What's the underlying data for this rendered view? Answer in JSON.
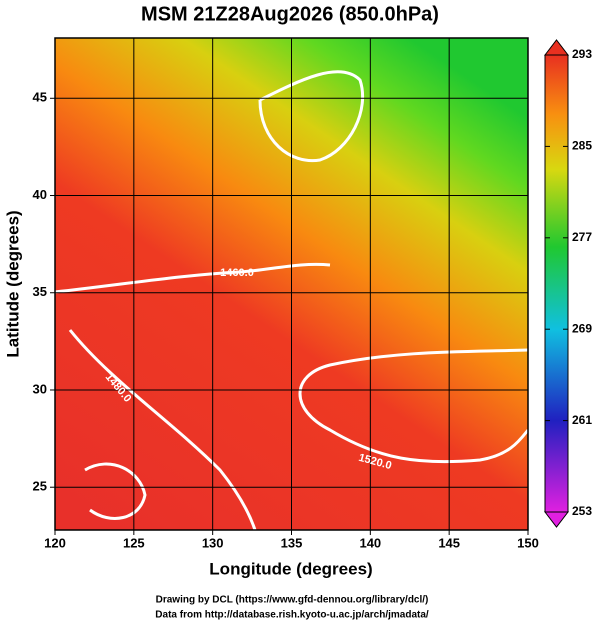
{
  "chart_data": {
    "type": "map",
    "title": "MSM 21Z28Aug2026 (850.0hPa)",
    "xlabel": "Longitude (degrees)",
    "ylabel": "Latitude  (degrees)",
    "xlim": [
      120,
      150
    ],
    "ylim": [
      22.8,
      48.1
    ],
    "xticks": [
      120,
      125,
      130,
      135,
      140,
      145,
      150
    ],
    "yticks": [
      25,
      30,
      35,
      40,
      45
    ],
    "grid": true,
    "colorbar": {
      "lim": [
        253,
        293
      ],
      "ticks": [
        253,
        261,
        269,
        277,
        285,
        293
      ]
    },
    "contour_labels": [
      "1460.0",
      "1480.0",
      "1520.0"
    ],
    "footer": [
      "Drawing by DCL (https://www.gfd-dennou.org/library/dcl/)",
      "Data from http://database.rish.kyoto-u.ac.jp/arch/jmadata/"
    ]
  }
}
